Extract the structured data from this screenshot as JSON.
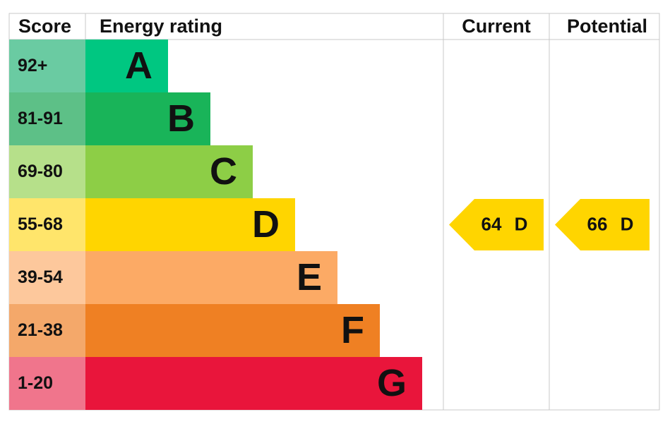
{
  "header": {
    "score": "Score",
    "energy_rating": "Energy rating",
    "current": "Current",
    "potential": "Potential"
  },
  "bands": [
    {
      "score": "92+",
      "letter": "A",
      "color": "#00c781",
      "score_color": "#6acba2"
    },
    {
      "score": "81-91",
      "letter": "B",
      "color": "#19b459",
      "score_color": "#5dc087"
    },
    {
      "score": "69-80",
      "letter": "C",
      "color": "#8dce46",
      "score_color": "#b6e08a"
    },
    {
      "score": "55-68",
      "letter": "D",
      "color": "#ffd500",
      "score_color": "#ffe56b"
    },
    {
      "score": "39-54",
      "letter": "E",
      "color": "#fcaa65",
      "score_color": "#fdc89c"
    },
    {
      "score": "21-38",
      "letter": "F",
      "color": "#ef8023",
      "score_color": "#f4a86a"
    },
    {
      "score": "1-20",
      "letter": "G",
      "color": "#e9153b",
      "score_color": "#f0758c"
    }
  ],
  "current": {
    "value": 64,
    "letter": "D"
  },
  "potential": {
    "value": 66,
    "letter": "D"
  }
}
